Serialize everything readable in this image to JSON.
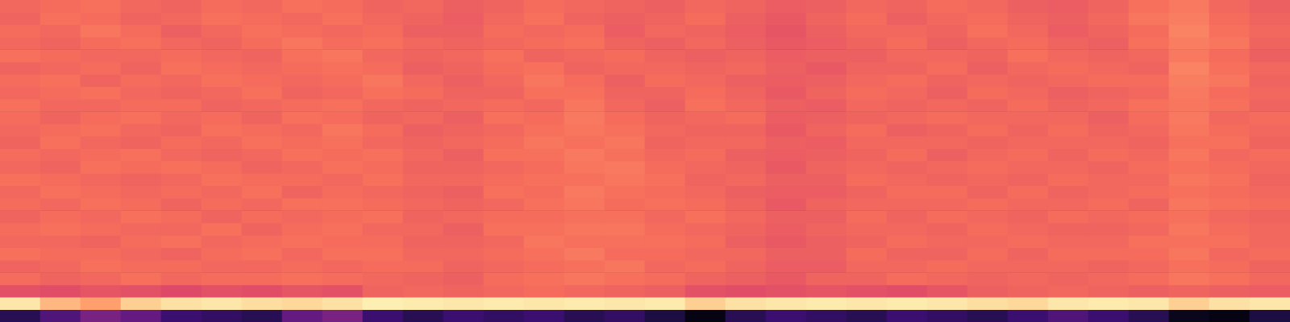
{
  "chart_data": {
    "type": "heatmap",
    "tick_labels": false,
    "color_range": [
      0,
      1
    ],
    "cells": [
      [
        0.68,
        0.69,
        0.7,
        0.68,
        0.67,
        0.69,
        0.68,
        0.7,
        0.69,
        0.67,
        0.68,
        0.66,
        0.67,
        0.69,
        0.68,
        0.67,
        0.66,
        0.68,
        0.67,
        0.65,
        0.66,
        0.68,
        0.67,
        0.69,
        0.68,
        0.66,
        0.65,
        0.67,
        0.7,
        0.72,
        0.68,
        0.66
      ],
      [
        0.67,
        0.7,
        0.69,
        0.67,
        0.68,
        0.7,
        0.69,
        0.68,
        0.7,
        0.68,
        0.67,
        0.65,
        0.68,
        0.7,
        0.67,
        0.66,
        0.67,
        0.69,
        0.66,
        0.64,
        0.67,
        0.69,
        0.66,
        0.68,
        0.69,
        0.67,
        0.66,
        0.68,
        0.71,
        0.73,
        0.69,
        0.67
      ],
      [
        0.69,
        0.68,
        0.71,
        0.69,
        0.66,
        0.68,
        0.7,
        0.69,
        0.68,
        0.69,
        0.66,
        0.66,
        0.69,
        0.68,
        0.69,
        0.65,
        0.68,
        0.67,
        0.65,
        0.63,
        0.66,
        0.68,
        0.68,
        0.67,
        0.7,
        0.68,
        0.65,
        0.67,
        0.69,
        0.74,
        0.7,
        0.68
      ],
      [
        0.68,
        0.67,
        0.69,
        0.7,
        0.68,
        0.67,
        0.69,
        0.71,
        0.69,
        0.7,
        0.68,
        0.67,
        0.68,
        0.69,
        0.7,
        0.67,
        0.66,
        0.68,
        0.66,
        0.64,
        0.65,
        0.67,
        0.69,
        0.66,
        0.68,
        0.69,
        0.67,
        0.66,
        0.7,
        0.73,
        0.71,
        0.67
      ],
      [
        0.7,
        0.69,
        0.68,
        0.68,
        0.69,
        0.68,
        0.67,
        0.7,
        0.71,
        0.68,
        0.67,
        0.68,
        0.7,
        0.67,
        0.68,
        0.69,
        0.67,
        0.66,
        0.67,
        0.65,
        0.66,
        0.66,
        0.68,
        0.68,
        0.67,
        0.7,
        0.68,
        0.67,
        0.68,
        0.72,
        0.69,
        0.66
      ],
      [
        0.67,
        0.68,
        0.69,
        0.67,
        0.7,
        0.69,
        0.68,
        0.69,
        0.7,
        0.69,
        0.66,
        0.67,
        0.69,
        0.7,
        0.67,
        0.68,
        0.68,
        0.67,
        0.68,
        0.66,
        0.64,
        0.67,
        0.67,
        0.69,
        0.66,
        0.68,
        0.69,
        0.68,
        0.67,
        0.74,
        0.7,
        0.68
      ],
      [
        0.69,
        0.7,
        0.67,
        0.69,
        0.68,
        0.7,
        0.69,
        0.68,
        0.69,
        0.71,
        0.68,
        0.66,
        0.68,
        0.71,
        0.69,
        0.66,
        0.69,
        0.68,
        0.66,
        0.65,
        0.66,
        0.68,
        0.69,
        0.67,
        0.68,
        0.67,
        0.68,
        0.69,
        0.69,
        0.73,
        0.71,
        0.67
      ],
      [
        0.68,
        0.69,
        0.7,
        0.68,
        0.67,
        0.68,
        0.7,
        0.67,
        0.68,
        0.7,
        0.69,
        0.67,
        0.67,
        0.7,
        0.7,
        0.67,
        0.67,
        0.69,
        0.67,
        0.64,
        0.67,
        0.69,
        0.68,
        0.66,
        0.69,
        0.68,
        0.66,
        0.67,
        0.68,
        0.72,
        0.69,
        0.68
      ],
      [
        0.7,
        0.68,
        0.68,
        0.69,
        0.69,
        0.67,
        0.68,
        0.69,
        0.7,
        0.68,
        0.67,
        0.68,
        0.69,
        0.68,
        0.71,
        0.68,
        0.66,
        0.7,
        0.68,
        0.66,
        0.65,
        0.68,
        0.67,
        0.68,
        0.67,
        0.69,
        0.67,
        0.68,
        0.7,
        0.71,
        0.7,
        0.67
      ],
      [
        0.69,
        0.67,
        0.69,
        0.7,
        0.68,
        0.69,
        0.67,
        0.7,
        0.69,
        0.67,
        0.68,
        0.66,
        0.7,
        0.69,
        0.72,
        0.69,
        0.67,
        0.68,
        0.69,
        0.65,
        0.66,
        0.67,
        0.68,
        0.69,
        0.68,
        0.68,
        0.68,
        0.66,
        0.69,
        0.72,
        0.68,
        0.69
      ],
      [
        0.68,
        0.69,
        0.7,
        0.68,
        0.67,
        0.7,
        0.69,
        0.68,
        0.71,
        0.69,
        0.66,
        0.67,
        0.68,
        0.7,
        0.71,
        0.7,
        0.68,
        0.67,
        0.67,
        0.64,
        0.67,
        0.69,
        0.66,
        0.67,
        0.69,
        0.67,
        0.69,
        0.67,
        0.68,
        0.71,
        0.69,
        0.68
      ],
      [
        0.67,
        0.7,
        0.68,
        0.67,
        0.69,
        0.68,
        0.7,
        0.69,
        0.7,
        0.68,
        0.67,
        0.68,
        0.69,
        0.71,
        0.7,
        0.71,
        0.67,
        0.68,
        0.68,
        0.66,
        0.65,
        0.68,
        0.68,
        0.68,
        0.67,
        0.68,
        0.68,
        0.68,
        0.67,
        0.7,
        0.7,
        0.67
      ],
      [
        0.69,
        0.68,
        0.69,
        0.7,
        0.68,
        0.67,
        0.68,
        0.7,
        0.69,
        0.7,
        0.68,
        0.66,
        0.7,
        0.7,
        0.72,
        0.7,
        0.68,
        0.69,
        0.66,
        0.65,
        0.66,
        0.67,
        0.69,
        0.66,
        0.68,
        0.69,
        0.67,
        0.69,
        0.68,
        0.71,
        0.68,
        0.69
      ],
      [
        0.68,
        0.67,
        0.7,
        0.69,
        0.7,
        0.69,
        0.67,
        0.68,
        0.7,
        0.69,
        0.67,
        0.67,
        0.68,
        0.69,
        0.71,
        0.72,
        0.69,
        0.68,
        0.67,
        0.64,
        0.67,
        0.68,
        0.67,
        0.68,
        0.69,
        0.68,
        0.68,
        0.67,
        0.69,
        0.7,
        0.69,
        0.68
      ],
      [
        0.7,
        0.69,
        0.68,
        0.67,
        0.68,
        0.7,
        0.69,
        0.69,
        0.68,
        0.7,
        0.68,
        0.68,
        0.69,
        0.7,
        0.7,
        0.71,
        0.7,
        0.67,
        0.68,
        0.66,
        0.66,
        0.69,
        0.68,
        0.67,
        0.68,
        0.67,
        0.69,
        0.68,
        0.68,
        0.71,
        0.7,
        0.67
      ],
      [
        0.68,
        0.7,
        0.69,
        0.68,
        0.69,
        0.68,
        0.7,
        0.67,
        0.69,
        0.68,
        0.67,
        0.66,
        0.7,
        0.69,
        0.72,
        0.7,
        0.69,
        0.68,
        0.66,
        0.65,
        0.65,
        0.67,
        0.69,
        0.69,
        0.67,
        0.69,
        0.67,
        0.68,
        0.69,
        0.7,
        0.69,
        0.68
      ],
      [
        0.69,
        0.68,
        0.7,
        0.69,
        0.67,
        0.69,
        0.68,
        0.7,
        0.7,
        0.69,
        0.68,
        0.67,
        0.68,
        0.7,
        0.71,
        0.69,
        0.7,
        0.69,
        0.67,
        0.64,
        0.67,
        0.68,
        0.68,
        0.68,
        0.69,
        0.68,
        0.68,
        0.69,
        0.67,
        0.71,
        0.7,
        0.69
      ],
      [
        0.67,
        0.69,
        0.68,
        0.7,
        0.69,
        0.67,
        0.69,
        0.68,
        0.69,
        0.7,
        0.67,
        0.68,
        0.69,
        0.69,
        0.7,
        0.7,
        0.68,
        0.7,
        0.68,
        0.66,
        0.66,
        0.69,
        0.67,
        0.69,
        0.68,
        0.67,
        0.69,
        0.68,
        0.69,
        0.7,
        0.68,
        0.67
      ],
      [
        0.69,
        0.7,
        0.69,
        0.68,
        0.68,
        0.7,
        0.67,
        0.69,
        0.7,
        0.68,
        0.68,
        0.66,
        0.7,
        0.7,
        0.71,
        0.71,
        0.69,
        0.68,
        0.67,
        0.65,
        0.67,
        0.68,
        0.68,
        0.67,
        0.69,
        0.68,
        0.67,
        0.67,
        0.68,
        0.71,
        0.69,
        0.68
      ],
      [
        0.68,
        0.68,
        0.67,
        0.69,
        0.7,
        0.68,
        0.69,
        0.7,
        0.69,
        0.69,
        0.67,
        0.67,
        0.68,
        0.71,
        0.7,
        0.7,
        0.7,
        0.69,
        0.66,
        0.64,
        0.66,
        0.67,
        0.69,
        0.68,
        0.68,
        0.69,
        0.68,
        0.68,
        0.7,
        0.7,
        0.7,
        0.68
      ],
      [
        0.7,
        0.69,
        0.69,
        0.68,
        0.67,
        0.69,
        0.7,
        0.68,
        0.7,
        0.7,
        0.68,
        0.68,
        0.69,
        0.7,
        0.72,
        0.69,
        0.69,
        0.68,
        0.68,
        0.66,
        0.66,
        0.69,
        0.67,
        0.67,
        0.69,
        0.67,
        0.69,
        0.69,
        0.69,
        0.71,
        0.68,
        0.69
      ],
      [
        0.67,
        0.68,
        0.7,
        0.69,
        0.69,
        0.68,
        0.68,
        0.69,
        0.68,
        0.69,
        0.69,
        0.67,
        0.68,
        0.69,
        0.7,
        0.71,
        0.68,
        0.69,
        0.67,
        0.65,
        0.65,
        0.68,
        0.68,
        0.69,
        0.68,
        0.68,
        0.68,
        0.67,
        0.68,
        0.7,
        0.69,
        0.67
      ],
      [
        0.69,
        0.67,
        0.68,
        0.7,
        0.68,
        0.69,
        0.69,
        0.7,
        0.69,
        0.68,
        0.67,
        0.66,
        0.69,
        0.7,
        0.71,
        0.7,
        0.69,
        0.67,
        0.66,
        0.64,
        0.67,
        0.67,
        0.69,
        0.68,
        0.67,
        0.68,
        0.67,
        0.68,
        0.69,
        0.71,
        0.7,
        0.68
      ],
      [
        0.62,
        0.61,
        0.63,
        0.62,
        0.6,
        0.62,
        0.61,
        0.63,
        0.62,
        0.67,
        0.68,
        0.67,
        0.68,
        0.69,
        0.68,
        0.67,
        0.66,
        0.62,
        0.61,
        0.62,
        0.63,
        0.62,
        0.61,
        0.63,
        0.66,
        0.67,
        0.68,
        0.67,
        0.66,
        0.67,
        0.66,
        0.65
      ],
      [
        0.95,
        0.85,
        0.8,
        0.9,
        0.94,
        0.95,
        0.93,
        0.92,
        0.94,
        0.97,
        0.96,
        0.95,
        0.96,
        0.95,
        0.96,
        0.95,
        0.96,
        0.9,
        0.94,
        0.95,
        0.96,
        0.95,
        0.96,
        0.95,
        0.93,
        0.92,
        0.95,
        0.96,
        0.95,
        0.9,
        0.94,
        0.95
      ],
      [
        0.15,
        0.25,
        0.35,
        0.3,
        0.2,
        0.18,
        0.15,
        0.3,
        0.35,
        0.2,
        0.15,
        0.2,
        0.18,
        0.2,
        0.15,
        0.18,
        0.12,
        0.03,
        0.15,
        0.2,
        0.18,
        0.15,
        0.2,
        0.18,
        0.15,
        0.2,
        0.25,
        0.2,
        0.15,
        0.05,
        0.03,
        0.12
      ]
    ]
  }
}
